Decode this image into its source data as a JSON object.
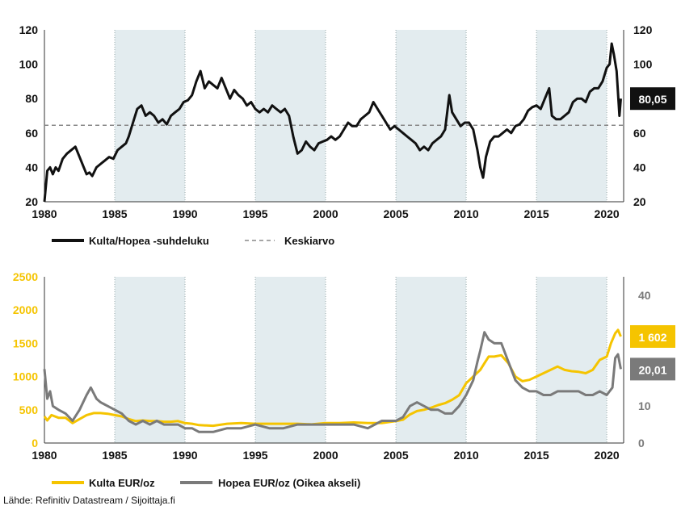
{
  "chart_data": [
    {
      "type": "line",
      "xlim": [
        1980,
        2021.2
      ],
      "ylim": [
        20,
        120
      ],
      "x_ticks": [
        "1980",
        "1985",
        "1990",
        "1995",
        "2000",
        "2005",
        "2010",
        "2015",
        "2020"
      ],
      "y_ticks_left": [
        "20",
        "40",
        "60",
        "80",
        "100",
        "120"
      ],
      "y_ticks_right": [
        "20",
        "40",
        "60",
        "80",
        "100",
        "120"
      ],
      "shaded_periods": [
        [
          1985,
          1990
        ],
        [
          1995,
          2000
        ],
        [
          2005,
          2010
        ],
        [
          2015,
          2020
        ]
      ],
      "grid": true,
      "legend_position": "bottom",
      "series": [
        {
          "name": "Kulta/Hopea -suhdeluku",
          "color": "#111111",
          "x": [
            1980.0,
            1980.2,
            1980.4,
            1980.6,
            1980.8,
            1981.0,
            1981.3,
            1981.6,
            1981.9,
            1982.2,
            1982.5,
            1982.8,
            1983.0,
            1983.2,
            1983.4,
            1983.7,
            1984.0,
            1984.3,
            1984.6,
            1984.9,
            1985.2,
            1985.5,
            1985.8,
            1986.0,
            1986.3,
            1986.6,
            1986.9,
            1987.2,
            1987.5,
            1987.8,
            1988.1,
            1988.4,
            1988.7,
            1989.0,
            1989.3,
            1989.6,
            1989.9,
            1990.2,
            1990.5,
            1990.8,
            1991.1,
            1991.4,
            1991.7,
            1992.0,
            1992.3,
            1992.6,
            1992.9,
            1993.2,
            1993.5,
            1993.8,
            1994.1,
            1994.4,
            1994.7,
            1995.0,
            1995.3,
            1995.6,
            1995.9,
            1996.2,
            1996.5,
            1996.8,
            1997.1,
            1997.4,
            1997.7,
            1998.0,
            1998.3,
            1998.6,
            1998.9,
            1999.2,
            1999.5,
            1999.8,
            2000.1,
            2000.4,
            2000.7,
            2001.0,
            2001.3,
            2001.6,
            2001.9,
            2002.2,
            2002.5,
            2002.8,
            2003.1,
            2003.4,
            2003.7,
            2004.0,
            2004.3,
            2004.6,
            2004.9,
            2005.2,
            2005.5,
            2005.8,
            2006.1,
            2006.4,
            2006.7,
            2007.0,
            2007.3,
            2007.6,
            2007.9,
            2008.2,
            2008.5,
            2008.8,
            2009.0,
            2009.3,
            2009.6,
            2009.9,
            2010.2,
            2010.5,
            2010.8,
            2011.0,
            2011.2,
            2011.4,
            2011.7,
            2012.0,
            2012.3,
            2012.6,
            2012.9,
            2013.2,
            2013.5,
            2013.8,
            2014.1,
            2014.4,
            2014.7,
            2015.0,
            2015.3,
            2015.6,
            2015.9,
            2016.1,
            2016.4,
            2016.7,
            2017.0,
            2017.3,
            2017.6,
            2017.9,
            2018.2,
            2018.5,
            2018.8,
            2019.1,
            2019.4,
            2019.7,
            2020.0,
            2020.2,
            2020.35,
            2020.5,
            2020.7,
            2020.9,
            2021.0
          ],
          "values": [
            20,
            38,
            40,
            36,
            40,
            38,
            45,
            48,
            50,
            52,
            46,
            40,
            36,
            37,
            35,
            40,
            42,
            44,
            46,
            45,
            50,
            52,
            54,
            58,
            66,
            74,
            76,
            70,
            72,
            70,
            66,
            68,
            65,
            70,
            72,
            74,
            78,
            79,
            82,
            90,
            96,
            86,
            90,
            88,
            86,
            92,
            86,
            80,
            85,
            82,
            80,
            76,
            78,
            74,
            72,
            74,
            72,
            76,
            74,
            72,
            74,
            70,
            58,
            48,
            50,
            55,
            52,
            50,
            54,
            55,
            56,
            58,
            56,
            58,
            62,
            66,
            64,
            64,
            68,
            70,
            72,
            78,
            74,
            70,
            66,
            62,
            64,
            62,
            60,
            58,
            56,
            54,
            50,
            52,
            50,
            54,
            56,
            58,
            62,
            82,
            72,
            68,
            64,
            66,
            66,
            62,
            50,
            40,
            34,
            46,
            55,
            58,
            58,
            60,
            62,
            60,
            64,
            65,
            68,
            73,
            75,
            76,
            74,
            80,
            86,
            70,
            68,
            68,
            70,
            72,
            78,
            80,
            80,
            78,
            84,
            86,
            86,
            90,
            98,
            100,
            112,
            106,
            96,
            70,
            80
          ],
          "end_label": "80,05"
        },
        {
          "name": "Keskiarvo",
          "color": "#888888",
          "style": "dashed",
          "x": [
            1980,
            2021.2
          ],
          "values": [
            64.5,
            64.5
          ]
        }
      ]
    },
    {
      "type": "line",
      "xlim": [
        1980,
        2021.2
      ],
      "ylim_left": [
        0,
        2500
      ],
      "ylim_right": [
        0,
        45
      ],
      "x_ticks": [
        "1980",
        "1985",
        "1990",
        "1995",
        "2000",
        "2005",
        "2010",
        "2015",
        "2020"
      ],
      "y_ticks_left": [
        "0",
        "500",
        "1000",
        "1500",
        "2000",
        "2500"
      ],
      "y_ticks_right": [
        "0",
        "10",
        "20",
        "30",
        "40"
      ],
      "shaded_periods": [
        [
          1985,
          1990
        ],
        [
          1995,
          2000
        ],
        [
          2005,
          2010
        ],
        [
          2015,
          2020
        ]
      ],
      "grid": true,
      "legend_position": "bottom",
      "series": [
        {
          "name": "Kulta EUR/oz",
          "color": "#f5c400",
          "axis": "left",
          "x": [
            1980.0,
            1980.2,
            1980.5,
            1981.0,
            1981.5,
            1982.0,
            1982.5,
            1983.0,
            1983.5,
            1984.0,
            1984.5,
            1985.0,
            1985.5,
            1986.0,
            1986.5,
            1987.0,
            1987.5,
            1988.0,
            1988.5,
            1989.0,
            1989.5,
            1990.0,
            1990.5,
            1991.0,
            1992.0,
            1993.0,
            1994.0,
            1995.0,
            1996.0,
            1997.0,
            1998.0,
            1999.0,
            2000.0,
            2001.0,
            2002.0,
            2003.0,
            2004.0,
            2005.0,
            2005.5,
            2006.0,
            2006.5,
            2007.0,
            2007.5,
            2008.0,
            2008.5,
            2009.0,
            2009.5,
            2010.0,
            2010.5,
            2011.0,
            2011.3,
            2011.6,
            2012.0,
            2012.5,
            2013.0,
            2013.5,
            2014.0,
            2014.5,
            2015.0,
            2015.5,
            2016.0,
            2016.5,
            2017.0,
            2017.5,
            2018.0,
            2018.5,
            2019.0,
            2019.5,
            2020.0,
            2020.3,
            2020.6,
            2020.8,
            2021.0
          ],
          "values": [
            400,
            340,
            420,
            380,
            380,
            300,
            360,
            420,
            450,
            450,
            440,
            420,
            400,
            360,
            330,
            340,
            330,
            330,
            320,
            320,
            330,
            300,
            290,
            270,
            260,
            290,
            300,
            290,
            290,
            290,
            290,
            280,
            300,
            300,
            310,
            300,
            300,
            330,
            350,
            430,
            480,
            500,
            530,
            570,
            600,
            650,
            720,
            900,
            1000,
            1100,
            1200,
            1300,
            1300,
            1320,
            1200,
            1000,
            930,
            950,
            1000,
            1050,
            1100,
            1150,
            1100,
            1080,
            1070,
            1050,
            1100,
            1250,
            1300,
            1500,
            1650,
            1700,
            1602
          ],
          "end_label": "1 602"
        },
        {
          "name": "Hopea EUR/oz (Oikea akseli)",
          "color": "#7a7a7a",
          "axis": "right",
          "x": [
            1980.0,
            1980.2,
            1980.4,
            1980.6,
            1981.0,
            1981.5,
            1982.0,
            1982.5,
            1983.0,
            1983.3,
            1983.7,
            1984.0,
            1984.5,
            1985.0,
            1985.5,
            1986.0,
            1986.5,
            1987.0,
            1987.5,
            1988.0,
            1988.5,
            1989.0,
            1989.5,
            1990.0,
            1990.5,
            1991.0,
            1992.0,
            1993.0,
            1994.0,
            1995.0,
            1996.0,
            1997.0,
            1998.0,
            1999.0,
            2000.0,
            2001.0,
            2002.0,
            2003.0,
            2004.0,
            2005.0,
            2005.5,
            2006.0,
            2006.5,
            2007.0,
            2007.5,
            2008.0,
            2008.5,
            2009.0,
            2009.5,
            2010.0,
            2010.5,
            2010.8,
            2011.0,
            2011.3,
            2011.6,
            2012.0,
            2012.5,
            2013.0,
            2013.5,
            2014.0,
            2014.5,
            2015.0,
            2015.5,
            2016.0,
            2016.5,
            2017.0,
            2017.5,
            2018.0,
            2018.5,
            2019.0,
            2019.5,
            2020.0,
            2020.2,
            2020.4,
            2020.6,
            2020.8,
            2021.0
          ],
          "values": [
            20,
            12,
            14,
            10,
            9,
            8,
            6,
            9,
            13,
            15,
            12,
            11,
            10,
            9,
            8,
            6,
            5,
            6,
            5,
            6,
            5,
            5,
            5,
            4,
            4,
            3,
            3,
            4,
            4,
            5,
            4,
            4,
            5,
            5,
            5,
            5,
            5,
            4,
            6,
            6,
            7,
            10,
            11,
            10,
            9,
            9,
            8,
            8,
            10,
            13,
            17,
            22,
            25,
            30,
            28,
            27,
            27,
            22,
            17,
            15,
            14,
            14,
            13,
            13,
            14,
            14,
            14,
            14,
            13,
            13,
            14,
            13,
            14,
            15,
            23,
            24,
            20.01
          ],
          "end_label": "20,01"
        }
      ]
    }
  ],
  "source_text": "Lähde: Refinitiv Datastream / Sijoittaja.fi"
}
